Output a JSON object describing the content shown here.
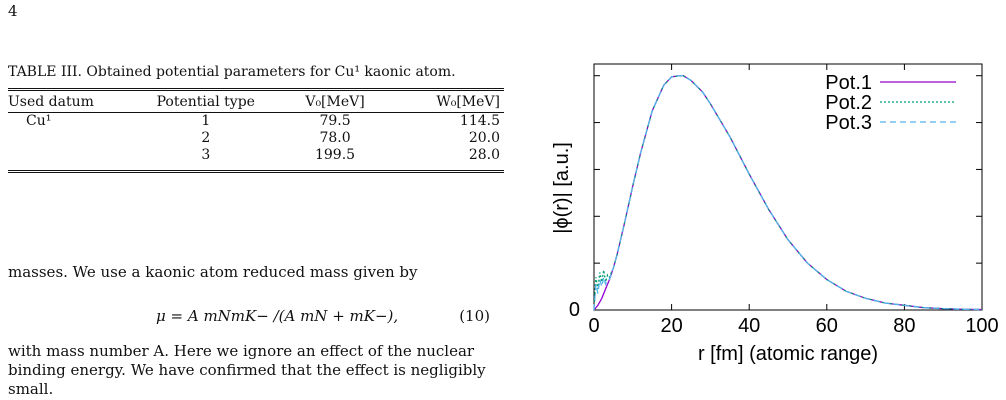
{
  "page_number": "4",
  "table": {
    "caption": "TABLE III. Obtained potential parameters for Cu¹ kaonic atom.",
    "headers": [
      "Used datum",
      "Potential type",
      "V₀[MeV]",
      "W₀[MeV]"
    ],
    "rows": [
      [
        "Cu¹",
        "1",
        "79.5",
        "114.5"
      ],
      [
        "",
        "2",
        "78.0",
        "20.0"
      ],
      [
        "",
        "3",
        "199.5",
        "28.0"
      ]
    ]
  },
  "text": {
    "para1": "masses. We use a kaonic atom reduced mass given by",
    "equation": "μ = A mNmK− /(A mN + mK−),",
    "equation_number": "(10)",
    "para2": "with mass number A. Here we ignore an effect of the nuclear binding energy. We have confirmed that the effect is negligibly small."
  },
  "chart_data": {
    "type": "line",
    "xlabel": "r [fm] (atomic range)",
    "ylabel": "|ϕ(r)| [a.u.]",
    "xlim": [
      0,
      100
    ],
    "ylim": [
      0,
      1.05
    ],
    "xticks": [
      "0",
      "20",
      "40",
      "60",
      "80",
      "100"
    ],
    "yticks": [
      "0"
    ],
    "legend_position": "top-right",
    "series": [
      {
        "name": "Pot.1",
        "color": "#9400d3",
        "dash": "solid",
        "x": [
          0,
          1,
          2,
          3,
          4,
          5,
          6,
          8,
          10,
          12,
          15,
          18,
          20,
          22,
          23,
          25,
          28,
          30,
          35,
          40,
          45,
          50,
          55,
          60,
          65,
          70,
          75,
          80,
          85,
          90,
          95,
          100
        ],
        "y": [
          0,
          0.02,
          0.05,
          0.09,
          0.13,
          0.18,
          0.24,
          0.38,
          0.53,
          0.67,
          0.85,
          0.96,
          0.995,
          1.0,
          1.0,
          0.98,
          0.93,
          0.88,
          0.74,
          0.58,
          0.43,
          0.3,
          0.2,
          0.13,
          0.08,
          0.05,
          0.03,
          0.02,
          0.01,
          0.006,
          0.003,
          0.002
        ]
      },
      {
        "name": "Pot.2",
        "color": "#009e73",
        "dash": "dotted",
        "x": [
          0,
          0.5,
          1,
          1.5,
          2,
          2.5,
          3,
          3.5,
          4,
          5,
          6,
          8,
          10,
          12,
          15,
          18,
          20,
          22,
          23,
          25,
          28,
          30,
          35,
          40,
          45,
          50,
          55,
          60,
          65,
          70,
          75,
          80,
          85,
          90,
          95,
          100
        ],
        "y": [
          0,
          0.14,
          0.09,
          0.16,
          0.12,
          0.17,
          0.12,
          0.15,
          0.14,
          0.18,
          0.24,
          0.38,
          0.53,
          0.67,
          0.85,
          0.96,
          0.995,
          1.0,
          1.0,
          0.98,
          0.93,
          0.88,
          0.74,
          0.58,
          0.43,
          0.3,
          0.2,
          0.13,
          0.08,
          0.05,
          0.03,
          0.02,
          0.01,
          0.006,
          0.003,
          0.002
        ]
      },
      {
        "name": "Pot.3",
        "color": "#56b4e9",
        "dash": "dashed",
        "x": [
          0,
          0.5,
          1,
          1.5,
          2,
          2.5,
          3,
          3.5,
          4,
          5,
          6,
          8,
          10,
          12,
          15,
          18,
          20,
          22,
          23,
          25,
          28,
          30,
          35,
          40,
          45,
          50,
          55,
          60,
          65,
          70,
          75,
          80,
          85,
          90,
          95,
          100
        ],
        "y": [
          0,
          0.11,
          0.07,
          0.13,
          0.1,
          0.14,
          0.11,
          0.13,
          0.13,
          0.18,
          0.24,
          0.38,
          0.53,
          0.67,
          0.85,
          0.96,
          0.995,
          1.0,
          1.0,
          0.98,
          0.93,
          0.88,
          0.74,
          0.58,
          0.43,
          0.3,
          0.2,
          0.13,
          0.08,
          0.05,
          0.03,
          0.02,
          0.01,
          0.006,
          0.003,
          0.002
        ]
      }
    ]
  }
}
